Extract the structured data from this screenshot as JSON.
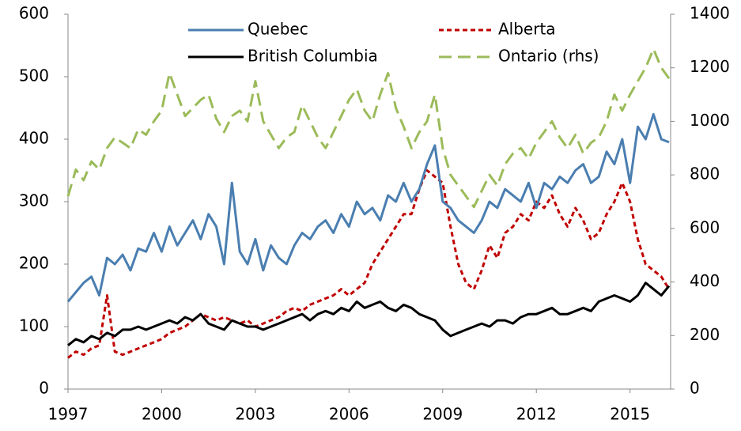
{
  "chart_data": {
    "type": "line",
    "x": [
      1997,
      1997.25,
      1997.5,
      1997.75,
      1998,
      1998.25,
      1998.5,
      1998.75,
      1999,
      1999.25,
      1999.5,
      1999.75,
      2000,
      2000.25,
      2000.5,
      2000.75,
      2001,
      2001.25,
      2001.5,
      2001.75,
      2002,
      2002.25,
      2002.5,
      2002.75,
      2003,
      2003.25,
      2003.5,
      2003.75,
      2004,
      2004.25,
      2004.5,
      2004.75,
      2005,
      2005.25,
      2005.5,
      2005.75,
      2006,
      2006.25,
      2006.5,
      2006.75,
      2007,
      2007.25,
      2007.5,
      2007.75,
      2008,
      2008.25,
      2008.5,
      2008.75,
      2009,
      2009.25,
      2009.5,
      2009.75,
      2010,
      2010.25,
      2010.5,
      2010.75,
      2011,
      2011.25,
      2011.5,
      2011.75,
      2012,
      2012.25,
      2012.5,
      2012.75,
      2013,
      2013.25,
      2013.5,
      2013.75,
      2014,
      2014.25,
      2014.5,
      2014.75,
      2015,
      2015.25,
      2015.5,
      2015.75,
      2016,
      2016.25
    ],
    "series": [
      {
        "name": "Quebec",
        "color": "#4a7eb0",
        "dash": "none",
        "values": [
          140,
          155,
          170,
          180,
          150,
          210,
          200,
          215,
          190,
          225,
          220,
          250,
          220,
          260,
          230,
          250,
          270,
          240,
          280,
          260,
          200,
          330,
          220,
          200,
          240,
          190,
          230,
          210,
          200,
          230,
          250,
          240,
          260,
          270,
          250,
          280,
          260,
          300,
          280,
          290,
          270,
          310,
          300,
          330,
          300,
          320,
          360,
          390,
          300,
          290,
          270,
          260,
          250,
          270,
          300,
          290,
          320,
          310,
          300,
          330,
          290,
          330,
          320,
          340,
          330,
          350,
          360,
          330,
          340,
          380,
          360,
          400,
          330,
          420,
          400,
          440,
          400,
          395
        ]
      },
      {
        "name": "Alberta",
        "color": "#c00000",
        "dash": "6,4",
        "values": [
          50,
          60,
          55,
          65,
          70,
          150,
          60,
          55,
          60,
          65,
          70,
          75,
          80,
          90,
          95,
          100,
          110,
          120,
          115,
          110,
          115,
          110,
          105,
          110,
          100,
          105,
          110,
          115,
          125,
          130,
          125,
          135,
          140,
          145,
          150,
          160,
          150,
          160,
          170,
          200,
          220,
          240,
          260,
          280,
          280,
          320,
          350,
          340,
          330,
          260,
          200,
          170,
          160,
          190,
          230,
          210,
          250,
          260,
          280,
          270,
          300,
          290,
          310,
          280,
          260,
          290,
          270,
          240,
          250,
          280,
          300,
          330,
          300,
          240,
          200,
          190,
          180,
          160
        ]
      },
      {
        "name": "British Columbia",
        "color": "#000000",
        "dash": "none",
        "values": [
          70,
          80,
          75,
          85,
          80,
          90,
          85,
          95,
          95,
          100,
          95,
          100,
          105,
          110,
          105,
          115,
          110,
          120,
          105,
          100,
          95,
          110,
          105,
          100,
          100,
          95,
          100,
          105,
          110,
          115,
          120,
          110,
          120,
          125,
          120,
          130,
          125,
          140,
          130,
          135,
          140,
          130,
          125,
          135,
          130,
          120,
          115,
          110,
          95,
          85,
          90,
          95,
          100,
          105,
          100,
          110,
          110,
          105,
          115,
          120,
          120,
          125,
          130,
          120,
          120,
          125,
          130,
          125,
          140,
          145,
          150,
          145,
          140,
          150,
          170,
          160,
          150,
          165
        ]
      },
      {
        "name": "Ontario (rhs)",
        "color": "#9bbb59",
        "dash": "16,8",
        "axis": "y2",
        "values": [
          720,
          820,
          780,
          850,
          820,
          900,
          940,
          920,
          900,
          970,
          950,
          1000,
          1040,
          1180,
          1100,
          1020,
          1050,
          1080,
          1100,
          1010,
          960,
          1020,
          1040,
          1000,
          1150,
          1000,
          950,
          900,
          940,
          960,
          1060,
          1000,
          940,
          900,
          960,
          1020,
          1080,
          1120,
          1040,
          1000,
          1100,
          1180,
          1050,
          980,
          900,
          960,
          1000,
          1100,
          900,
          800,
          760,
          720,
          680,
          740,
          800,
          760,
          840,
          880,
          900,
          860,
          920,
          960,
          1000,
          940,
          900,
          950,
          880,
          920,
          940,
          1000,
          1100,
          1040,
          1100,
          1150,
          1200,
          1270,
          1200,
          1160
        ]
      }
    ],
    "xlim": [
      1997,
      2016.3
    ],
    "xticks": [
      1997,
      2000,
      2003,
      2006,
      2009,
      2012,
      2015
    ],
    "ylim": [
      0,
      600
    ],
    "yticks": [
      0,
      100,
      200,
      300,
      400,
      500,
      600
    ],
    "y2lim": [
      0,
      1400
    ],
    "y2ticks": [
      0,
      200,
      400,
      600,
      800,
      1000,
      1200,
      1400
    ]
  }
}
